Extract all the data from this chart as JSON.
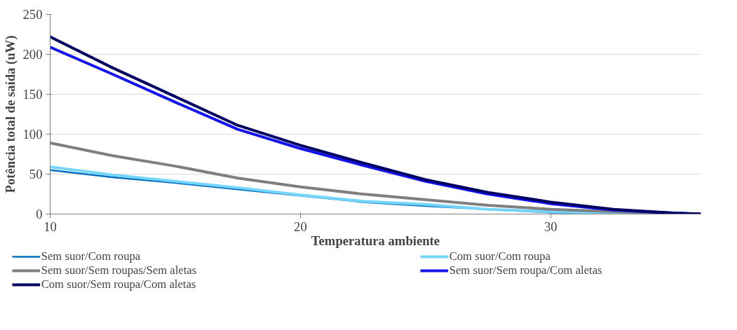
{
  "chart_data": {
    "type": "line",
    "xlabel": "Temperatura ambiente",
    "ylabel": "Potência total de saída (uW)",
    "x": [
      10,
      12.5,
      15,
      17.5,
      20,
      22.5,
      25,
      27.5,
      30,
      32.5,
      35,
      36
    ],
    "xlim": [
      10,
      36
    ],
    "xticks": [
      10,
      20,
      30
    ],
    "ylim": [
      0,
      250
    ],
    "yticks": [
      0,
      50,
      100,
      150,
      200,
      250
    ],
    "grid": "y",
    "legend": "bottom",
    "line_style": "solid",
    "series": [
      {
        "name": "Sem suor/Com roupa",
        "color": "#0070c0",
        "values": [
          55,
          46,
          39,
          31,
          23,
          15,
          10,
          6,
          2,
          1,
          0,
          0
        ]
      },
      {
        "name": "Com suor/Com roupa",
        "color": "#75d5fa",
        "values": [
          59,
          49,
          41,
          33,
          24,
          16,
          12,
          6,
          3,
          1,
          0,
          0
        ]
      },
      {
        "name": "Sem suor/Sem roupas/Sem aletas",
        "color": "#7f7f7f",
        "values": [
          89,
          73,
          60,
          45,
          34,
          25,
          18,
          11,
          6,
          3,
          1,
          0
        ]
      },
      {
        "name": "Sem suor/Sem roupa/Com aletas",
        "color": "#1414f0",
        "values": [
          209,
          175,
          140,
          106,
          82,
          61,
          41,
          25,
          13,
          5,
          1,
          0
        ]
      },
      {
        "name": "Com suor/Sem roupa/Com aletas",
        "color": "#000060",
        "values": [
          222,
          183,
          147,
          111,
          86,
          64,
          43,
          27,
          15,
          6,
          1,
          0
        ]
      }
    ]
  }
}
